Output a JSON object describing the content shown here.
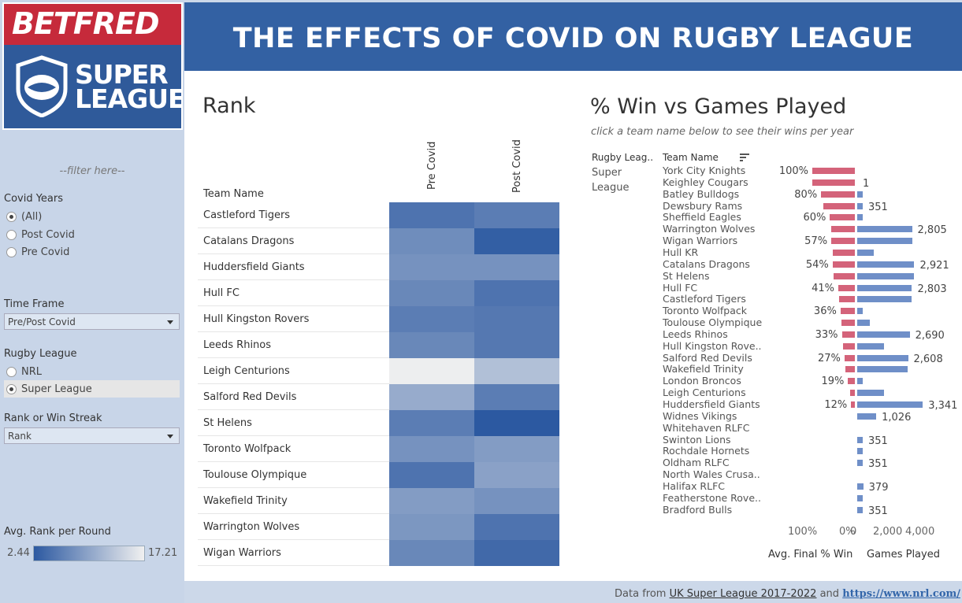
{
  "header": {
    "title": "THE EFFECTS OF COVID ON RUGBY LEAGUE"
  },
  "logo": {
    "brand": "BETFRED",
    "line1": "SUPER",
    "line2": "LEAGUE"
  },
  "sidebar": {
    "filter_hint": "--filter here--",
    "covid_years": {
      "label": "Covid Years",
      "options": [
        "(All)",
        "Post Covid",
        "Pre Covid"
      ],
      "selected": "(All)"
    },
    "time_frame": {
      "label": "Time Frame",
      "value": "Pre/Post Covid"
    },
    "rugby_league": {
      "label": "Rugby League",
      "options": [
        "NRL",
        "Super League"
      ],
      "selected": "Super League"
    },
    "rank_or_streak": {
      "label": "Rank or Win Streak",
      "value": "Rank"
    },
    "legend": {
      "label": "Avg. Rank per Round",
      "min": "2.44",
      "max": "17.21"
    }
  },
  "rank_chart": {
    "title": "Rank",
    "row_header": "Team Name",
    "columns": [
      "Pre Covid",
      "Post Covid"
    ],
    "colors": {
      "low": "#2c59a1",
      "high": "#f0f0f0"
    }
  },
  "win_chart": {
    "title": "% Win vs Games Played",
    "subtitle": "click a team name below to see their wins per year",
    "col_league": "Rugby Leag..",
    "col_team": "Team Name",
    "league_line1": "Super",
    "league_line2": "League",
    "axis_pct_ticks": [
      "100%",
      "0%"
    ],
    "axis_gp_ticks": [
      "0",
      "2,000",
      "4,000"
    ],
    "axis_pct_title": "Avg. Final % Win",
    "axis_gp_title": "Games Played",
    "colors": {
      "pct": "#d4637a",
      "gp": "#6f8fc8"
    }
  },
  "footer": {
    "prefix": "Data from ",
    "link1": "UK Super League 2017-2022",
    "mid": " and ",
    "link2": "https://www.nrl.com/"
  },
  "chart_data": [
    {
      "type": "heatmap",
      "title": "Rank",
      "x": [
        "Pre Covid",
        "Post Covid"
      ],
      "y": [
        "Castleford Tigers",
        "Catalans Dragons",
        "Huddersfield Giants",
        "Hull FC",
        "Hull Kingston Rovers",
        "Leeds Rhinos",
        "Leigh Centurions",
        "Salford Red Devils",
        "St Helens",
        "Toronto Wolfpack",
        "Toulouse Olympique",
        "Wakefield Trinity",
        "Warrington Wolves",
        "Wigan Warriors"
      ],
      "values": [
        [
          5.0,
          6.0
        ],
        [
          7.5,
          3.0
        ],
        [
          8.0,
          8.0
        ],
        [
          7.0,
          5.0
        ],
        [
          6.0,
          5.5
        ],
        [
          7.0,
          5.5
        ],
        [
          17.0,
          12.5
        ],
        [
          10.5,
          6.0
        ],
        [
          6.0,
          2.44
        ],
        [
          8.0,
          9.0
        ],
        [
          5.0,
          9.5
        ],
        [
          9.0,
          8.0
        ],
        [
          8.5,
          5.0
        ],
        [
          7.0,
          4.0
        ]
      ],
      "color_label": "Avg. Rank per Round",
      "color_range": [
        2.44,
        17.21
      ]
    },
    {
      "type": "bar",
      "title": "% Win vs Games Played",
      "categories": [
        "York City Knights",
        "Keighley Cougars",
        "Batley Bulldogs",
        "Dewsbury Rams",
        "Sheffield Eagles",
        "Warrington Wolves",
        "Wigan Warriors",
        "Hull KR",
        "Catalans Dragons",
        "St Helens",
        "Hull FC",
        "Castleford Tigers",
        "Toronto Wolfpack",
        "Toulouse Olympique",
        "Leeds Rhinos",
        "Hull Kingston Rove..",
        "Salford Red Devils",
        "Wakefield Trinity",
        "London Broncos",
        "Leigh Centurions",
        "Huddersfield Giants",
        "Widnes Vikings",
        "Whitehaven RLFC",
        "Swinton Lions",
        "Rochdale Hornets",
        "Oldham RLFC",
        "North Wales Crusa..",
        "Halifax RLFC",
        "Featherstone Rove..",
        "Bradford Bulls"
      ],
      "series": [
        {
          "name": "Avg. Final % Win",
          "values": [
            100,
            100,
            80,
            75,
            60,
            57,
            57,
            54,
            54,
            52,
            41,
            40,
            36,
            34,
            33,
            31,
            27,
            25,
            19,
            15,
            12,
            0,
            0,
            0,
            0,
            0,
            0,
            0,
            0,
            0
          ],
          "labels": [
            "100%",
            "",
            "80%",
            "",
            "60%",
            "",
            "57%",
            "",
            "54%",
            "",
            "41%",
            "",
            "36%",
            "",
            "33%",
            "",
            "27%",
            "",
            "19%",
            "",
            "12%",
            "",
            "",
            "",
            "",
            "",
            "",
            "",
            "",
            ""
          ]
        },
        {
          "name": "Games Played",
          "values": [
            0,
            1,
            351,
            351,
            351,
            2805,
            2805,
            900,
            2921,
            2921,
            2803,
            2803,
            351,
            700,
            2690,
            1400,
            2608,
            2600,
            351,
            1400,
            3341,
            1026,
            20,
            351,
            351,
            351,
            20,
            379,
            351,
            351
          ],
          "labels": [
            "",
            "1",
            "",
            "351",
            "",
            "2,805",
            "",
            "",
            "2,921",
            "",
            "2,803",
            "",
            "",
            "",
            "2,690",
            "",
            "2,608",
            "",
            "",
            "",
            "3,341",
            "1,026",
            "",
            "351",
            "",
            "351",
            "",
            "379",
            "",
            "351"
          ]
        }
      ],
      "xlabel": "Avg. Final % Win / Games Played",
      "xlim_pct": [
        0,
        100
      ],
      "xlim_games": [
        0,
        4000
      ]
    }
  ]
}
